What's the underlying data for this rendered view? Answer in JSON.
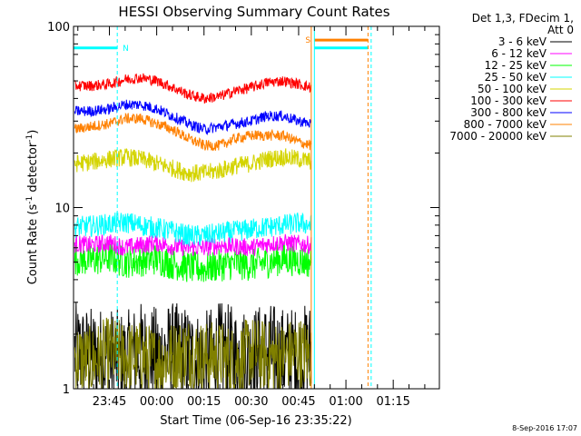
{
  "chart_data": {
    "type": "line",
    "title": "HESSI Observing Summary Count Rates",
    "xlabel": "Start Time (06-Sep-16 23:35:22)",
    "ylabel_main": "Count Rate (s",
    "ylabel_sup1": "-1",
    "ylabel_mid": " detector",
    "ylabel_sup2": "-1",
    "ylabel_end": ")",
    "yscale": "log",
    "ylim": [
      1,
      100
    ],
    "xlim_minutes": [
      -11.37,
      104.63
    ],
    "x_ticks": [
      {
        "label": "23:45",
        "minutes": 0
      },
      {
        "label": "00:00",
        "minutes": 15
      },
      {
        "label": "00:15",
        "minutes": 30
      },
      {
        "label": "00:30",
        "minutes": 45
      },
      {
        "label": "00:45",
        "minutes": 60
      },
      {
        "label": "01:00",
        "minutes": 75
      },
      {
        "label": "01:15",
        "minutes": 90
      }
    ],
    "y_ticks": [
      {
        "label": "1",
        "value": 1
      },
      {
        "label": "10",
        "value": 10
      },
      {
        "label": "100",
        "value": 100
      }
    ],
    "legend_header": [
      "Det 1,3, FDecim 1,",
      "Att 0"
    ],
    "legend_position": "top-right",
    "series": [
      {
        "name": "3 - 6 keV",
        "color": "#000000",
        "x": [
          -11,
          -6,
          0,
          5,
          10,
          15,
          20,
          25,
          30,
          35,
          40,
          45,
          50,
          55,
          60,
          64
        ],
        "y": [
          1.6,
          1.5,
          1.5,
          1.4,
          1.6,
          1.5,
          1.6,
          1.5,
          1.4,
          1.6,
          1.5,
          1.5,
          1.6,
          1.5,
          1.5,
          1.6
        ]
      },
      {
        "name": "6 - 12 keV",
        "color": "#ff00ff",
        "x": [
          -11,
          -6,
          0,
          5,
          10,
          15,
          20,
          25,
          30,
          35,
          40,
          45,
          50,
          55,
          60,
          64
        ],
        "y": [
          6.3,
          6.2,
          6.4,
          6.0,
          6.2,
          6.4,
          6.1,
          6.0,
          6.0,
          6.2,
          6.1,
          6.0,
          6.3,
          6.4,
          6.3,
          6.2
        ]
      },
      {
        "name": "12 - 25 keV",
        "color": "#00ff00",
        "x": [
          -11,
          -6,
          0,
          5,
          10,
          15,
          20,
          25,
          30,
          35,
          40,
          45,
          50,
          55,
          60,
          64
        ],
        "y": [
          5.2,
          5.1,
          5.3,
          5.0,
          5.1,
          5.2,
          4.9,
          4.7,
          4.6,
          4.8,
          4.9,
          4.8,
          5.0,
          5.2,
          5.1,
          5.0
        ]
      },
      {
        "name": "25 - 50 keV",
        "color": "#00ffff",
        "x": [
          -11,
          -6,
          0,
          5,
          10,
          15,
          20,
          25,
          30,
          35,
          40,
          45,
          50,
          55,
          60,
          64
        ],
        "y": [
          7.8,
          7.9,
          8.1,
          8.3,
          8.0,
          7.7,
          7.4,
          7.0,
          7.0,
          7.2,
          7.4,
          7.6,
          7.8,
          8.0,
          8.2,
          8.0
        ]
      },
      {
        "name": "50 - 100 keV",
        "color": "#d4d400",
        "x": [
          -11,
          -6,
          0,
          5,
          10,
          15,
          20,
          25,
          30,
          35,
          40,
          45,
          50,
          55,
          60,
          64
        ],
        "y": [
          17.5,
          17.8,
          18.5,
          19.0,
          18.5,
          17.5,
          16.5,
          15.5,
          15.5,
          16.0,
          17.0,
          17.5,
          18.5,
          19.0,
          18.5,
          18.0
        ]
      },
      {
        "name": "100 - 300 keV",
        "color": "#ff0000",
        "x": [
          -11,
          -6,
          0,
          5,
          10,
          15,
          20,
          25,
          30,
          35,
          40,
          45,
          50,
          55,
          60,
          64
        ],
        "y": [
          47,
          47,
          48,
          51,
          52,
          50,
          46,
          42,
          40,
          41,
          44,
          46,
          49,
          50,
          48,
          46
        ]
      },
      {
        "name": "300 - 800 keV",
        "color": "#0000ff",
        "x": [
          -11,
          -6,
          0,
          5,
          10,
          15,
          20,
          25,
          30,
          35,
          40,
          45,
          50,
          55,
          60,
          64
        ],
        "y": [
          34,
          34,
          35,
          37,
          37,
          35,
          32,
          29,
          27,
          28,
          29,
          30,
          32,
          32,
          30,
          29
        ]
      },
      {
        "name": "800 - 7000 keV",
        "color": "#ff8000",
        "x": [
          -11,
          -6,
          0,
          5,
          10,
          15,
          20,
          25,
          30,
          35,
          40,
          45,
          50,
          55,
          60,
          64
        ],
        "y": [
          27,
          28,
          29,
          31,
          31,
          29,
          27,
          24,
          22,
          22,
          24,
          25,
          25,
          25,
          23,
          22
        ]
      },
      {
        "name": "7000 - 20000 keV",
        "color": "#808000",
        "x": [
          -11,
          -6,
          0,
          5,
          10,
          15,
          20,
          25,
          30,
          35,
          40,
          45,
          50,
          55,
          60,
          64
        ],
        "y": [
          1.5,
          1.4,
          1.6,
          1.5,
          1.5,
          1.4,
          1.5,
          1.6,
          1.5,
          1.5,
          1.4,
          1.6,
          1.5,
          1.5,
          1.6,
          1.5
        ]
      }
    ],
    "flag_bars": [
      {
        "letter": "N",
        "color": "#00ffff",
        "x_start": -11.37,
        "x_end": 2.5,
        "level": 76
      },
      {
        "letter": "S",
        "color": "#ff8000",
        "x_start": 65,
        "x_end": 82,
        "level": 84
      },
      {
        "letter": "",
        "color": "#00ffff",
        "x_start": 65,
        "x_end": 82,
        "level": 76
      }
    ],
    "vertical_markers": [
      {
        "x": 2.5,
        "color": "#00ffff",
        "style": "dashed"
      },
      {
        "x": 64,
        "color": "#ff8000",
        "style": "solid"
      },
      {
        "x": 65,
        "color": "#00ffff",
        "style": "solid"
      },
      {
        "x": 82,
        "color": "#ff8000",
        "style": "dashed"
      },
      {
        "x": 83,
        "color": "#00ffff",
        "style": "dashed"
      }
    ]
  },
  "footer_date": "8-Sep-2016 17:07"
}
